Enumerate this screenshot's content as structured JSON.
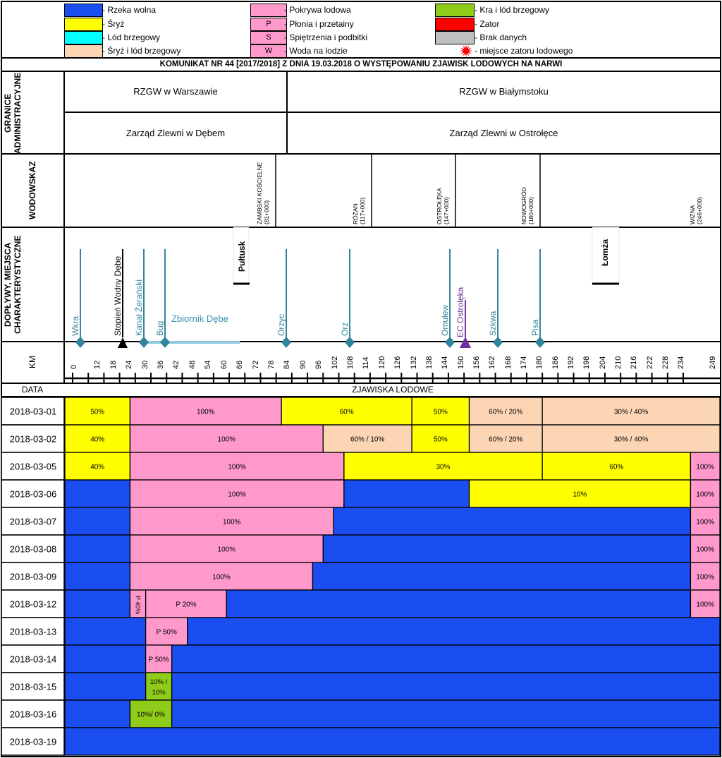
{
  "legend": [
    {
      "label": "- Rzeka wolna",
      "color": "#1a4ef0",
      "code": ""
    },
    {
      "label": "- Śryż",
      "color": "#ffff00",
      "code": ""
    },
    {
      "label": "- Lód brzegowy",
      "color": "#00ffff",
      "code": ""
    },
    {
      "label": "- Śryż i lód brzegowy",
      "color": "#fcd5b4",
      "code": ""
    },
    {
      "label": "- Pokrywa lodowa",
      "color": "#ff99cc",
      "code": ""
    },
    {
      "label": "- Płonia i przetainy",
      "color": "#ff99cc",
      "code": "P"
    },
    {
      "label": "- Spiętrzenia i podbitki",
      "color": "#ff99cc",
      "code": "S"
    },
    {
      "label": "- Woda na lodzie",
      "color": "#ff99cc",
      "code": "W"
    },
    {
      "label": "- Kra i lód brzegowy",
      "color": "#8fcc1a",
      "code": ""
    },
    {
      "label": "- Zator",
      "color": "#ff0000",
      "code": ""
    },
    {
      "label": "- Brak danych",
      "color": "#c0c0c0",
      "code": ""
    },
    {
      "label": "- miejsce zatoru lodowego",
      "color": "#ff0000",
      "code": "burst"
    }
  ],
  "title": "KOMUNIKAT NR 44 [2017/2018] Z DNIA 19.03.2018 O WYSTĘPOWANIU ZJAWISK LODOWYCH NA NARWI",
  "admin": {
    "label": "GRANICE ADMINISTRACYJNE",
    "rzgw_left": "RZGW w Warszawie",
    "rzgw_right": "RZGW w Białymstoku",
    "zarzad_left": "Zarząd Zlewni w Dębem",
    "zarzad_right": "Zarząd Zlewni w Ostrołęce"
  },
  "gauges": {
    "label": "WODOWSKAZ",
    "items": [
      {
        "name": "ZAMBSKI KOŚCIELNE",
        "km": "(81+000)"
      },
      {
        "name": "RÓŻAN",
        "km": "(117+000)"
      },
      {
        "name": "OSTROŁĘKA",
        "km": "(147+000)"
      },
      {
        "name": "NOWOGRÓD",
        "km": "(180+000)"
      },
      {
        "name": "WIZNA",
        "km": "(246+000)"
      }
    ]
  },
  "tributaries": {
    "label": "DOPŁYWY, MIEJSCA CHARAKTERYSTYCZNE",
    "items": [
      {
        "name": "Wkra",
        "km": 3,
        "type": "trib"
      },
      {
        "name": "Stopień Wodny Dębe",
        "km": 22,
        "type": "dam"
      },
      {
        "name": "Kanał Żerański",
        "km": 30,
        "type": "trib"
      },
      {
        "name": "Bug",
        "km": 38,
        "type": "trib"
      },
      {
        "name": "Orzyc",
        "km": 84,
        "type": "trib"
      },
      {
        "name": "Orz",
        "km": 108,
        "type": "trib"
      },
      {
        "name": "Omulew",
        "km": 146,
        "type": "trib"
      },
      {
        "name": "EC Ostrołęka",
        "km": 152,
        "type": "plant"
      },
      {
        "name": "Szkwa",
        "km": 164,
        "type": "trib"
      },
      {
        "name": "Pisa",
        "km": 180,
        "type": "trib"
      }
    ],
    "towns": [
      {
        "name": "Pułtusk"
      },
      {
        "name": "Łomża"
      }
    ],
    "reservoir": "Zbiornik Dębe"
  },
  "km_axis": {
    "label": "KM",
    "ticks": [
      "0",
      "12",
      "18",
      "24",
      "30",
      "36",
      "42",
      "48",
      "54",
      "60",
      "66",
      "72",
      "78",
      "84",
      "90",
      "96",
      "102",
      "108",
      "114",
      "120",
      "126",
      "132",
      "138",
      "144",
      "150",
      "156",
      "162",
      "168",
      "174",
      "180",
      "186",
      "192",
      "198",
      "204",
      "210",
      "216",
      "222",
      "228",
      "234",
      "249"
    ]
  },
  "table_header": {
    "date": "DATA",
    "phenomena": "ZJAWISKA LODOWE"
  },
  "chart_data": {
    "type": "table",
    "title": "KOMUNIKAT NR 44 [2017/2018] Z DNIA 19.03.2018 O WYSTĘPOWANIU ZJAWISK LODOWYCH NA NARWI",
    "xlabel": "KM",
    "colors": {
      "free": "#1a4ef0",
      "sryz": "#ffff00",
      "brzeg": "#00ffff",
      "sryz_brzeg": "#fcd5b4",
      "pokrywa": "#ff99cc",
      "kra": "#8fcc1a"
    },
    "rows": [
      {
        "date": "2018-03-01",
        "segments": [
          {
            "from": 0,
            "to": 22,
            "type": "sryz",
            "label": "50%"
          },
          {
            "from": 22,
            "to": 80,
            "type": "pokrywa",
            "label": "100%"
          },
          {
            "from": 80,
            "to": 130,
            "type": "sryz",
            "label": "60%"
          },
          {
            "from": 130,
            "to": 152,
            "type": "sryz",
            "label": "50%"
          },
          {
            "from": 152,
            "to": 180,
            "type": "sryz_brzeg",
            "label": "60% / 20%"
          },
          {
            "from": 180,
            "to": 249,
            "type": "sryz_brzeg",
            "label": "30% / 40%"
          }
        ]
      },
      {
        "date": "2018-03-02",
        "segments": [
          {
            "from": 0,
            "to": 22,
            "type": "sryz",
            "label": "40%"
          },
          {
            "from": 22,
            "to": 96,
            "type": "pokrywa",
            "label": "100%"
          },
          {
            "from": 96,
            "to": 130,
            "type": "sryz_brzeg",
            "label": "60% / 10%"
          },
          {
            "from": 130,
            "to": 152,
            "type": "sryz",
            "label": "50%"
          },
          {
            "from": 152,
            "to": 180,
            "type": "sryz_brzeg",
            "label": "60% / 20%"
          },
          {
            "from": 180,
            "to": 249,
            "type": "sryz_brzeg",
            "label": "30% / 40%"
          }
        ]
      },
      {
        "date": "2018-03-05",
        "segments": [
          {
            "from": 0,
            "to": 22,
            "type": "sryz",
            "label": "40%"
          },
          {
            "from": 22,
            "to": 104,
            "type": "pokrywa",
            "label": "100%"
          },
          {
            "from": 104,
            "to": 180,
            "type": "sryz",
            "label": "30%"
          },
          {
            "from": 180,
            "to": 237,
            "type": "sryz",
            "label": "60%"
          },
          {
            "from": 237,
            "to": 249,
            "type": "pokrywa",
            "label": "100%"
          }
        ]
      },
      {
        "date": "2018-03-06",
        "segments": [
          {
            "from": 0,
            "to": 22,
            "type": "free",
            "label": ""
          },
          {
            "from": 22,
            "to": 104,
            "type": "pokrywa",
            "label": "100%"
          },
          {
            "from": 104,
            "to": 152,
            "type": "free",
            "label": ""
          },
          {
            "from": 152,
            "to": 237,
            "type": "sryz",
            "label": "10%"
          },
          {
            "from": 237,
            "to": 249,
            "type": "pokrywa",
            "label": "100%"
          }
        ]
      },
      {
        "date": "2018-03-07",
        "segments": [
          {
            "from": 0,
            "to": 22,
            "type": "free",
            "label": ""
          },
          {
            "from": 22,
            "to": 100,
            "type": "pokrywa",
            "label": "100%"
          },
          {
            "from": 100,
            "to": 237,
            "type": "free",
            "label": ""
          },
          {
            "from": 237,
            "to": 249,
            "type": "pokrywa",
            "label": "100%"
          }
        ]
      },
      {
        "date": "2018-03-08",
        "segments": [
          {
            "from": 0,
            "to": 22,
            "type": "free",
            "label": ""
          },
          {
            "from": 22,
            "to": 96,
            "type": "pokrywa",
            "label": "100%"
          },
          {
            "from": 96,
            "to": 237,
            "type": "free",
            "label": ""
          },
          {
            "from": 237,
            "to": 249,
            "type": "pokrywa",
            "label": "100%"
          }
        ]
      },
      {
        "date": "2018-03-09",
        "segments": [
          {
            "from": 0,
            "to": 22,
            "type": "free",
            "label": ""
          },
          {
            "from": 22,
            "to": 92,
            "type": "pokrywa",
            "label": "100%"
          },
          {
            "from": 92,
            "to": 237,
            "type": "free",
            "label": ""
          },
          {
            "from": 237,
            "to": 249,
            "type": "pokrywa",
            "label": "100%"
          }
        ]
      },
      {
        "date": "2018-03-12",
        "segments": [
          {
            "from": 0,
            "to": 22,
            "type": "free",
            "label": ""
          },
          {
            "from": 22,
            "to": 28,
            "type": "pokrywa",
            "label": "P 40%",
            "vertical": true
          },
          {
            "from": 28,
            "to": 59,
            "type": "pokrywa",
            "label": "P 20%"
          },
          {
            "from": 59,
            "to": 237,
            "type": "free",
            "label": ""
          },
          {
            "from": 237,
            "to": 249,
            "type": "pokrywa",
            "label": "100%"
          }
        ]
      },
      {
        "date": "2018-03-13",
        "segments": [
          {
            "from": 0,
            "to": 28,
            "type": "free",
            "label": ""
          },
          {
            "from": 28,
            "to": 44,
            "type": "pokrywa",
            "label": "P 50%"
          },
          {
            "from": 44,
            "to": 249,
            "type": "free",
            "label": ""
          }
        ]
      },
      {
        "date": "2018-03-14",
        "segments": [
          {
            "from": 0,
            "to": 28,
            "type": "free",
            "label": ""
          },
          {
            "from": 28,
            "to": 38,
            "type": "pokrywa",
            "label": "P 50%"
          },
          {
            "from": 38,
            "to": 249,
            "type": "free",
            "label": ""
          }
        ]
      },
      {
        "date": "2018-03-15",
        "segments": [
          {
            "from": 0,
            "to": 28,
            "type": "free",
            "label": ""
          },
          {
            "from": 28,
            "to": 38,
            "type": "kra",
            "label": "10% / 10%",
            "wrap": true
          },
          {
            "from": 38,
            "to": 249,
            "type": "free",
            "label": ""
          }
        ]
      },
      {
        "date": "2018-03-16",
        "segments": [
          {
            "from": 0,
            "to": 22,
            "type": "free",
            "label": ""
          },
          {
            "from": 22,
            "to": 38,
            "type": "kra",
            "label": "10%/ 0%"
          },
          {
            "from": 38,
            "to": 249,
            "type": "free",
            "label": ""
          }
        ]
      },
      {
        "date": "2018-03-19",
        "segments": [
          {
            "from": 0,
            "to": 249,
            "type": "free",
            "label": ""
          }
        ]
      }
    ]
  }
}
